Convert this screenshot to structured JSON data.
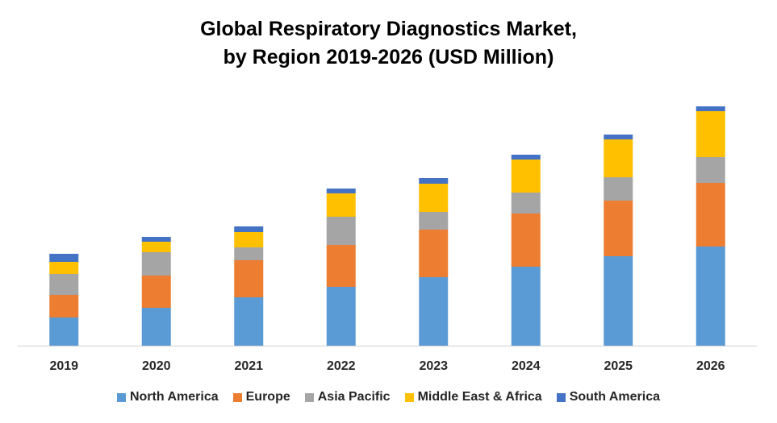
{
  "chart_data": {
    "type": "bar",
    "stacked": true,
    "title_line1": "Global Respiratory Diagnostics Market,",
    "title_line2": "by Region 2019-2026 (USD Million)",
    "xlabel": "",
    "ylabel": "",
    "y_axis_visible": false,
    "grid": false,
    "legend_placement": "bottom",
    "categories": [
      "2019",
      "2020",
      "2021",
      "2022",
      "2023",
      "2024",
      "2025",
      "2026"
    ],
    "series": [
      {
        "name": "North America",
        "color": "#5B9BD5",
        "values": [
          35,
          47,
          60,
          73,
          85,
          98,
          111,
          123
        ]
      },
      {
        "name": "Europe",
        "color": "#ED7D31",
        "values": [
          28,
          40,
          46,
          52,
          59,
          66,
          69,
          79
        ]
      },
      {
        "name": "Asia Pacific",
        "color": "#A5A5A5",
        "values": [
          26,
          29,
          16,
          35,
          22,
          26,
          29,
          32
        ]
      },
      {
        "name": "Middle East & Africa",
        "color": "#FFC000",
        "values": [
          15,
          13,
          19,
          29,
          35,
          41,
          47,
          57
        ]
      },
      {
        "name": "South America",
        "color": "#4472C4",
        "values": [
          10,
          6,
          7,
          6,
          7,
          6,
          6,
          6
        ]
      }
    ]
  }
}
